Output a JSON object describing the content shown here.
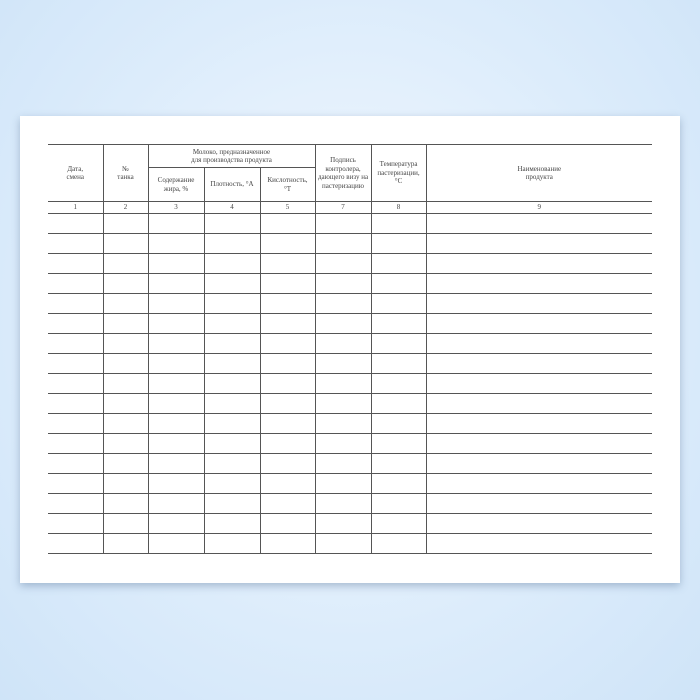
{
  "form": {
    "headers": {
      "date_shift": "Дата, смена",
      "tank_no": "№ танка",
      "milk_group": "Молоко, предназначенное для производства продукта",
      "fat": "Содержание жира, %",
      "density": "Плотность, °А",
      "acidity": "Кислотность, °Т",
      "signature": "Подпись контролера, дающего визу на пастеризацию",
      "temperature": "Температура пастеризации, °С",
      "product_name": "Наименование продукта"
    },
    "column_numbers": [
      "1",
      "2",
      "3",
      "4",
      "5",
      "7",
      "8",
      "9"
    ],
    "empty_row_count": 17,
    "colors": {
      "background": "#dcecfb",
      "paper": "#ffffff",
      "lines": "#555555"
    }
  }
}
